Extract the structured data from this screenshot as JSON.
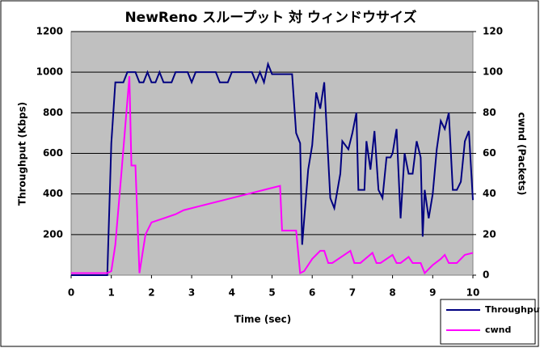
{
  "chart_data": {
    "type": "line",
    "title": "NewReno スループット 対 ウィンドウサイズ",
    "x_label": "Time (sec)",
    "y_label": "Throughput (Kbps)",
    "y2_label": "cwnd (Packets)",
    "xlim": [
      0,
      10
    ],
    "xticks": [
      0,
      1,
      2,
      3,
      4,
      5,
      6,
      7,
      8,
      9,
      10
    ],
    "ylim": [
      0,
      1200
    ],
    "yticks": [
      200,
      400,
      600,
      800,
      1000,
      1200
    ],
    "y2lim": [
      0,
      120
    ],
    "y2ticks": [
      0,
      20,
      40,
      60,
      80,
      100,
      120
    ],
    "grid": true,
    "legend": "bottom-right",
    "series": [
      {
        "name": "Throughput",
        "color": "#000080",
        "x": [
          0,
          0.9,
          1.0,
          1.1,
          1.3,
          1.4,
          1.6,
          1.7,
          1.8,
          1.9,
          2.0,
          2.1,
          2.2,
          2.3,
          2.5,
          2.6,
          2.9,
          3.0,
          3.1,
          3.6,
          3.7,
          3.9,
          4.0,
          4.5,
          4.6,
          4.7,
          4.8,
          4.9,
          5.0,
          5.5,
          5.6,
          5.7,
          5.75,
          5.9,
          6.0,
          6.1,
          6.2,
          6.3,
          6.45,
          6.55,
          6.7,
          6.75,
          6.9,
          7.0,
          7.1,
          7.15,
          7.3,
          7.35,
          7.45,
          7.55,
          7.65,
          7.75,
          7.85,
          7.95,
          8.0,
          8.1,
          8.2,
          8.3,
          8.4,
          8.5,
          8.6,
          8.7,
          8.75,
          8.8,
          8.9,
          9.0,
          9.1,
          9.2,
          9.3,
          9.4,
          9.5,
          9.6,
          9.7,
          9.8,
          9.9,
          10.0
        ],
        "values": [
          0,
          0,
          650,
          950,
          950,
          1000,
          1000,
          950,
          950,
          1000,
          950,
          950,
          1000,
          950,
          950,
          1000,
          1000,
          950,
          1000,
          1000,
          950,
          950,
          1000,
          1000,
          950,
          1000,
          950,
          1040,
          990,
          990,
          700,
          650,
          150,
          520,
          640,
          900,
          820,
          950,
          380,
          330,
          500,
          660,
          620,
          700,
          800,
          420,
          420,
          660,
          520,
          710,
          420,
          380,
          580,
          580,
          600,
          720,
          280,
          600,
          500,
          500,
          660,
          580,
          190,
          420,
          280,
          400,
          620,
          760,
          720,
          800,
          420,
          420,
          460,
          660,
          710,
          370
        ]
      },
      {
        "name": "cwnd",
        "color": "#ff00ff",
        "axis": "y2",
        "x": [
          0,
          0.9,
          1.0,
          1.1,
          1.25,
          1.45,
          1.5,
          1.6,
          1.7,
          1.85,
          2.0,
          2.3,
          2.6,
          2.8,
          3.2,
          3.4,
          3.6,
          4.0,
          4.4,
          4.8,
          5.2,
          5.25,
          5.6,
          5.7,
          5.8,
          6.0,
          6.2,
          6.3,
          6.4,
          6.5,
          6.8,
          6.95,
          7.05,
          7.2,
          7.5,
          7.6,
          7.7,
          8.0,
          8.1,
          8.2,
          8.4,
          8.5,
          8.7,
          8.8,
          9.0,
          9.2,
          9.3,
          9.4,
          9.6,
          9.8,
          10.0
        ],
        "values": [
          1,
          1,
          2,
          15,
          50,
          98,
          54,
          54,
          1,
          20,
          26,
          28,
          30,
          32,
          34,
          35,
          36,
          38,
          40,
          42,
          44,
          22,
          22,
          1,
          2,
          8,
          12,
          12,
          6,
          6,
          10,
          12,
          6,
          6,
          11,
          6,
          6,
          10,
          6,
          6,
          9,
          6,
          6,
          1,
          5,
          8,
          10,
          6,
          6,
          10,
          11
        ]
      }
    ]
  }
}
